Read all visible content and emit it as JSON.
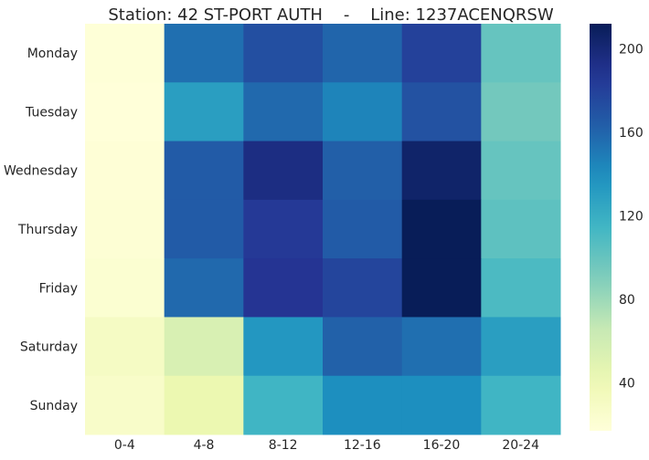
{
  "chart_data": {
    "type": "heatmap",
    "title": "Station: 42 ST-PORT AUTH    -    Line: 1237ACENQRSW",
    "x_categories": [
      "0-4",
      "4-8",
      "8-12",
      "12-16",
      "16-20",
      "20-24"
    ],
    "y_categories": [
      "Monday",
      "Tuesday",
      "Wednesday",
      "Thursday",
      "Friday",
      "Saturday",
      "Sunday"
    ],
    "values": [
      [
        18,
        155,
        172,
        160,
        180,
        100
      ],
      [
        17,
        130,
        158,
        145,
        170,
        95
      ],
      [
        19,
        165,
        195,
        163,
        205,
        100
      ],
      [
        20,
        165,
        185,
        165,
        212,
        103
      ],
      [
        22,
        158,
        188,
        178,
        212,
        110
      ],
      [
        30,
        55,
        135,
        162,
        155,
        130
      ],
      [
        27,
        42,
        115,
        140,
        140,
        115
      ]
    ],
    "colorbar": {
      "min": 17,
      "max": 212,
      "ticks": [
        40,
        80,
        120,
        160,
        200
      ]
    },
    "colormap": "YlGnBu"
  }
}
